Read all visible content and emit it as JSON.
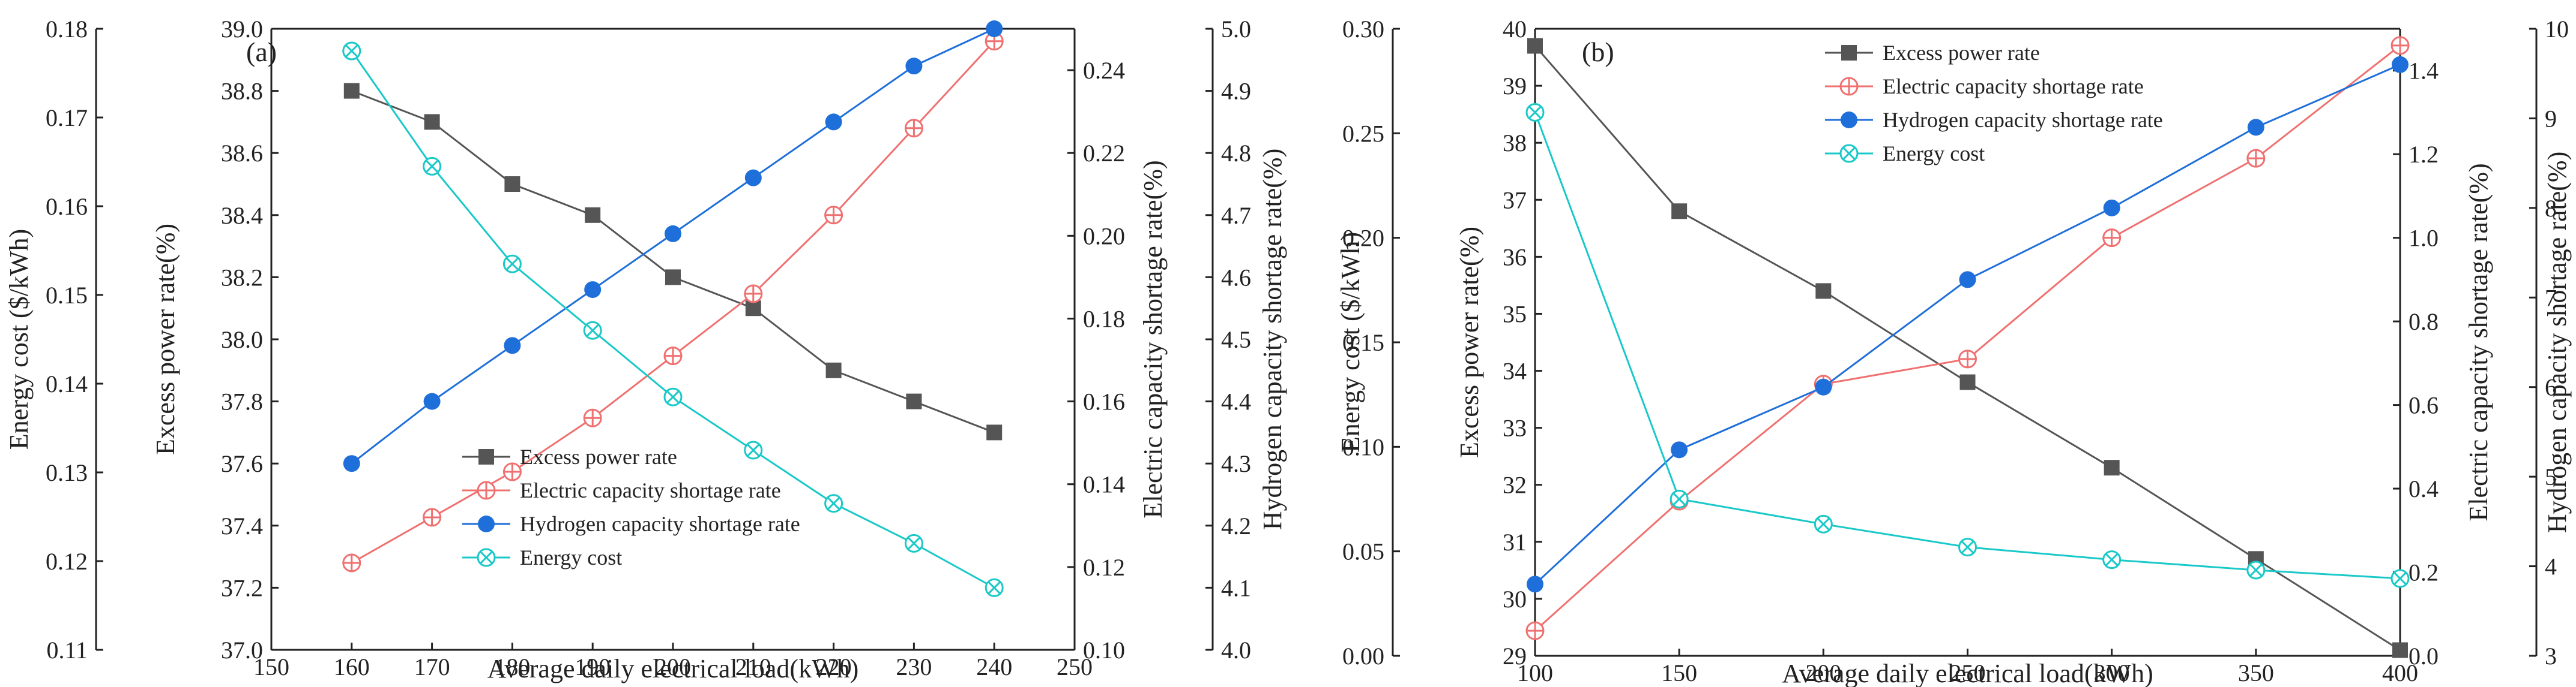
{
  "chart_data": [
    {
      "type": "line",
      "panel_label": "(a)",
      "xlabel": "Average daily electrical load(kWh)",
      "x_ticks": [
        150,
        160,
        170,
        180,
        190,
        200,
        210,
        220,
        230,
        240,
        250
      ],
      "xlim": [
        150,
        250
      ],
      "axes": {
        "cost": {
          "label": "Energy cost ($/kWh)",
          "lim": [
            0.11,
            0.18
          ],
          "ticks": [
            "0.11",
            "0.12",
            "0.13",
            "0.14",
            "0.15",
            "0.16",
            "0.17",
            "0.18"
          ]
        },
        "excess": {
          "label": "Excess power rate(%)",
          "lim": [
            37.0,
            39.0
          ],
          "ticks": [
            "37.0",
            "37.2",
            "37.4",
            "37.6",
            "37.8",
            "38.0",
            "38.2",
            "38.4",
            "38.6",
            "38.8",
            "39.0"
          ]
        },
        "elec": {
          "label": "Electric capacity shortage rate(%)",
          "lim": [
            0.1,
            0.25
          ],
          "ticks": [
            "0.10",
            "0.12",
            "0.14",
            "0.16",
            "0.18",
            "0.20",
            "0.22",
            "0.24"
          ]
        },
        "hydro": {
          "label": "Hydrogen capacity shortage rate(%)",
          "lim": [
            4.0,
            5.0
          ],
          "ticks": [
            "4.0",
            "4.1",
            "4.2",
            "4.3",
            "4.4",
            "4.5",
            "4.6",
            "4.7",
            "4.8",
            "4.9",
            "5.0"
          ]
        }
      },
      "legend_position": "bottom-center",
      "series": [
        {
          "name": "Excess power rate",
          "axis": "excess",
          "color": "#555555",
          "marker": "square",
          "x": [
            160,
            170,
            180,
            190,
            200,
            210,
            220,
            230,
            240
          ],
          "values": [
            38.8,
            38.7,
            38.5,
            38.4,
            38.2,
            38.1,
            37.9,
            37.8,
            37.7
          ]
        },
        {
          "name": "Electric capacity shortage rate",
          "axis": "elec",
          "color": "#f07070",
          "marker": "circle-plus",
          "x": [
            160,
            170,
            180,
            190,
            200,
            210,
            220,
            230,
            240
          ],
          "values": [
            0.121,
            0.132,
            0.143,
            0.156,
            0.171,
            0.186,
            0.205,
            0.226,
            0.247
          ]
        },
        {
          "name": "Hydrogen capacity shortage rate",
          "axis": "hydro",
          "color": "#1e6fd9",
          "marker": "filled-circle",
          "x": [
            160,
            170,
            180,
            190,
            200,
            210,
            220,
            230,
            240
          ],
          "values": [
            4.3,
            4.4,
            4.49,
            4.58,
            4.67,
            4.76,
            4.85,
            4.94,
            5.0
          ]
        },
        {
          "name": "Energy cost",
          "axis": "cost",
          "color": "#19c8c8",
          "marker": "circle-x",
          "x": [
            160,
            170,
            180,
            190,
            200,
            210,
            220,
            230,
            240
          ],
          "values": [
            0.1775,
            0.1645,
            0.1535,
            0.146,
            0.1385,
            0.1325,
            0.1265,
            0.122,
            0.117
          ]
        }
      ]
    },
    {
      "type": "line",
      "panel_label": "(b)",
      "xlabel": "Average daily electrical load(kWh)",
      "x_ticks": [
        100,
        150,
        200,
        250,
        300,
        350,
        400
      ],
      "xlim": [
        100,
        400
      ],
      "axes": {
        "cost": {
          "label": "Energy cost ($/kWh)",
          "lim": [
            0.0,
            0.3
          ],
          "ticks": [
            "0.00",
            "0.05",
            "0.10",
            "0.15",
            "0.20",
            "0.25",
            "0.30"
          ]
        },
        "excess": {
          "label": "Excess power rate(%)",
          "lim": [
            29,
            40
          ],
          "ticks": [
            "29",
            "30",
            "31",
            "32",
            "33",
            "34",
            "35",
            "36",
            "37",
            "38",
            "39",
            "40"
          ]
        },
        "elec": {
          "label": "Electric capacity shortage rate(%)",
          "lim": [
            0.0,
            1.5
          ],
          "ticks": [
            "0.0",
            "0.2",
            "0.4",
            "0.6",
            "0.8",
            "1.0",
            "1.2",
            "1.4"
          ]
        },
        "hydro": {
          "label": "Hydrogen capacity shortage rate(%)",
          "lim": [
            3,
            10
          ],
          "ticks": [
            "3",
            "4",
            "5",
            "6",
            "7",
            "8",
            "9",
            "10"
          ]
        }
      },
      "legend_position": "top-center",
      "series": [
        {
          "name": "Excess power rate",
          "axis": "excess",
          "color": "#555555",
          "marker": "square",
          "x": [
            100,
            150,
            200,
            250,
            300,
            350,
            400
          ],
          "values": [
            39.7,
            36.8,
            35.4,
            33.8,
            32.3,
            30.7,
            29.1
          ]
        },
        {
          "name": "Electric capacity shortage rate",
          "axis": "elec",
          "color": "#f07070",
          "marker": "circle-plus",
          "x": [
            100,
            150,
            200,
            250,
            300,
            350,
            400
          ],
          "values": [
            0.06,
            0.37,
            0.65,
            0.71,
            1.0,
            1.19,
            1.46
          ]
        },
        {
          "name": "Hydrogen capacity shortage rate",
          "axis": "hydro",
          "color": "#1e6fd9",
          "marker": "filled-circle",
          "x": [
            100,
            150,
            200,
            250,
            300,
            350,
            400
          ],
          "values": [
            3.8,
            5.3,
            6.0,
            7.2,
            8.0,
            8.9,
            9.6
          ]
        },
        {
          "name": "Energy cost",
          "axis": "cost",
          "color": "#19c8c8",
          "marker": "circle-x",
          "x": [
            100,
            150,
            200,
            250,
            300,
            350,
            400
          ],
          "values": [
            0.26,
            0.075,
            0.063,
            0.052,
            0.046,
            0.041,
            0.037
          ]
        }
      ]
    }
  ]
}
